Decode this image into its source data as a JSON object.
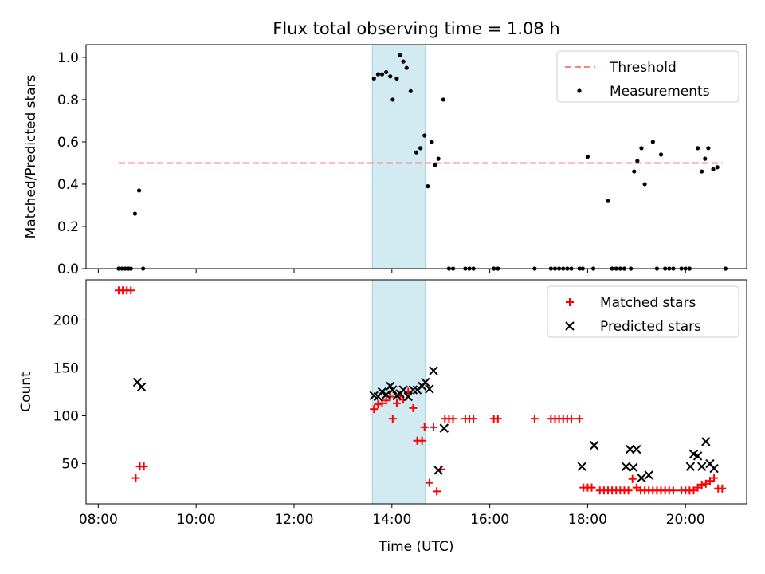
{
  "chart_data": [
    {
      "type": "scatter",
      "title": "Flux total observing time = 1.08 h",
      "xlabel": "",
      "ylabel": "Matched/Predicted stars",
      "ylim": [
        0,
        1.06
      ],
      "yticks": [
        "0.0",
        "0.2",
        "0.4",
        "0.6",
        "0.8",
        "1.0"
      ],
      "legend_position": "top-right",
      "legend": [
        "Threshold",
        "Measurements"
      ],
      "threshold": {
        "name": "Threshold",
        "value": 0.5,
        "x_range": [
          "08:25",
          "20:45"
        ],
        "color": "#ff7f7f"
      },
      "highlight": {
        "start": "13:36",
        "end": "14:41",
        "color": "#add8e6"
      },
      "series": [
        {
          "name": "Measurements",
          "marker": "dot",
          "color": "#000000",
          "x": [
            "08:25",
            "08:29",
            "08:33",
            "08:37",
            "08:40",
            "08:45",
            "08:50",
            "08:55",
            "13:38",
            "13:43",
            "13:48",
            "13:53",
            "13:58",
            "14:01",
            "14:06",
            "14:10",
            "14:14",
            "14:18",
            "14:23",
            "14:30",
            "14:35",
            "14:40",
            "14:44",
            "14:49",
            "14:53",
            "14:57",
            "15:03",
            "15:10",
            "15:15",
            "15:30",
            "15:35",
            "15:40",
            "16:05",
            "16:10",
            "16:55",
            "17:15",
            "17:20",
            "17:25",
            "17:30",
            "17:35",
            "17:40",
            "17:50",
            "17:54",
            "18:00",
            "18:07",
            "18:25",
            "18:30",
            "18:35",
            "18:40",
            "18:45",
            "18:53",
            "18:57",
            "19:01",
            "19:06",
            "19:10",
            "19:20",
            "19:25",
            "19:30",
            "19:35",
            "19:40",
            "19:45",
            "19:55",
            "20:00",
            "20:05",
            "20:15",
            "20:20",
            "20:24",
            "20:28",
            "20:34",
            "20:39",
            "20:49"
          ],
          "y": [
            0,
            0,
            0,
            0,
            0,
            0.26,
            0.37,
            0,
            0.9,
            0.92,
            0.92,
            0.93,
            0.91,
            0.8,
            0.9,
            1.01,
            0.98,
            0.95,
            0.84,
            0.55,
            0.57,
            0.63,
            0.39,
            0.6,
            0.49,
            0.52,
            0.8,
            0,
            0,
            0,
            0,
            0,
            0,
            0,
            0,
            0,
            0,
            0,
            0,
            0,
            0,
            0,
            0,
            0.53,
            0,
            0.32,
            0,
            0,
            0,
            0,
            0,
            0.46,
            0.51,
            0.57,
            0.4,
            0.6,
            0,
            0.54,
            0,
            0,
            0,
            0,
            0,
            0,
            0.57,
            0.46,
            0.52,
            0.57,
            0.47,
            0.48,
            0
          ]
        }
      ]
    },
    {
      "type": "scatter",
      "title": "",
      "xlabel": "Time (UTC)",
      "ylabel": "Count",
      "ylim": [
        8,
        242
      ],
      "yticks": [
        "50",
        "100",
        "150",
        "200"
      ],
      "xticks": [
        "08:00",
        "10:00",
        "12:00",
        "14:00",
        "16:00",
        "18:00",
        "20:00"
      ],
      "xlim": [
        "07:45",
        "21:15"
      ],
      "legend_position": "top-right",
      "legend": [
        "Matched stars",
        "Predicted stars"
      ],
      "highlight": {
        "start": "13:36",
        "end": "14:41",
        "color": "#add8e6"
      },
      "series": [
        {
          "name": "Matched stars",
          "marker": "plus",
          "color": "#ff0000",
          "x": [
            "08:25",
            "08:30",
            "08:35",
            "08:40",
            "08:46",
            "08:51",
            "08:56",
            "13:38",
            "13:43",
            "13:48",
            "13:53",
            "13:58",
            "14:01",
            "14:06",
            "14:10",
            "14:14",
            "14:20",
            "14:26",
            "14:31",
            "14:37",
            "14:40",
            "14:46",
            "14:51",
            "14:55",
            "15:00",
            "15:05",
            "15:10",
            "15:15",
            "15:30",
            "15:35",
            "15:40",
            "16:05",
            "16:10",
            "16:55",
            "17:15",
            "17:20",
            "17:25",
            "17:30",
            "17:35",
            "17:40",
            "17:50",
            "17:55",
            "18:00",
            "18:05",
            "18:15",
            "18:20",
            "18:25",
            "18:30",
            "18:35",
            "18:40",
            "18:45",
            "18:50",
            "18:55",
            "19:00",
            "19:05",
            "19:10",
            "19:15",
            "19:20",
            "19:25",
            "19:30",
            "19:35",
            "19:40",
            "19:45",
            "19:55",
            "20:00",
            "20:05",
            "20:10",
            "20:15",
            "20:20",
            "20:25",
            "20:30",
            "20:35",
            "20:40",
            "20:45"
          ],
          "y": [
            231,
            231,
            231,
            231,
            35,
            47,
            47,
            107,
            112,
            113,
            116,
            120,
            97,
            113,
            120,
            117,
            125,
            108,
            74,
            74,
            88,
            30,
            88,
            21,
            44,
            97,
            97,
            97,
            97,
            97,
            97,
            97,
            97,
            97,
            97,
            97,
            97,
            97,
            97,
            97,
            97,
            25,
            25,
            25,
            22,
            22,
            22,
            22,
            22,
            22,
            22,
            22,
            34,
            25,
            22,
            22,
            22,
            22,
            22,
            22,
            22,
            22,
            22,
            22,
            22,
            22,
            22,
            25,
            28,
            29,
            32,
            35,
            24,
            24
          ]
        },
        {
          "name": "Predicted stars",
          "marker": "x",
          "color": "#000000",
          "x": [
            "08:48",
            "08:53",
            "13:38",
            "13:43",
            "13:48",
            "13:53",
            "13:58",
            "14:01",
            "14:06",
            "14:10",
            "14:14",
            "14:20",
            "14:26",
            "14:31",
            "14:37",
            "14:41",
            "14:46",
            "14:51",
            "14:57",
            "15:04",
            "17:53",
            "18:08",
            "18:47",
            "18:52",
            "18:56",
            "19:00",
            "19:06",
            "19:15",
            "20:06",
            "20:10",
            "20:15",
            "20:20",
            "20:25",
            "20:30",
            "20:35"
          ],
          "y": [
            135,
            130,
            121,
            120,
            125,
            122,
            131,
            127,
            121,
            123,
            127,
            120,
            127,
            127,
            131,
            135,
            128,
            147,
            43,
            87,
            47,
            69,
            47,
            65,
            46,
            65,
            35,
            38,
            47,
            60,
            58,
            47,
            73,
            50,
            45
          ]
        }
      ]
    }
  ]
}
